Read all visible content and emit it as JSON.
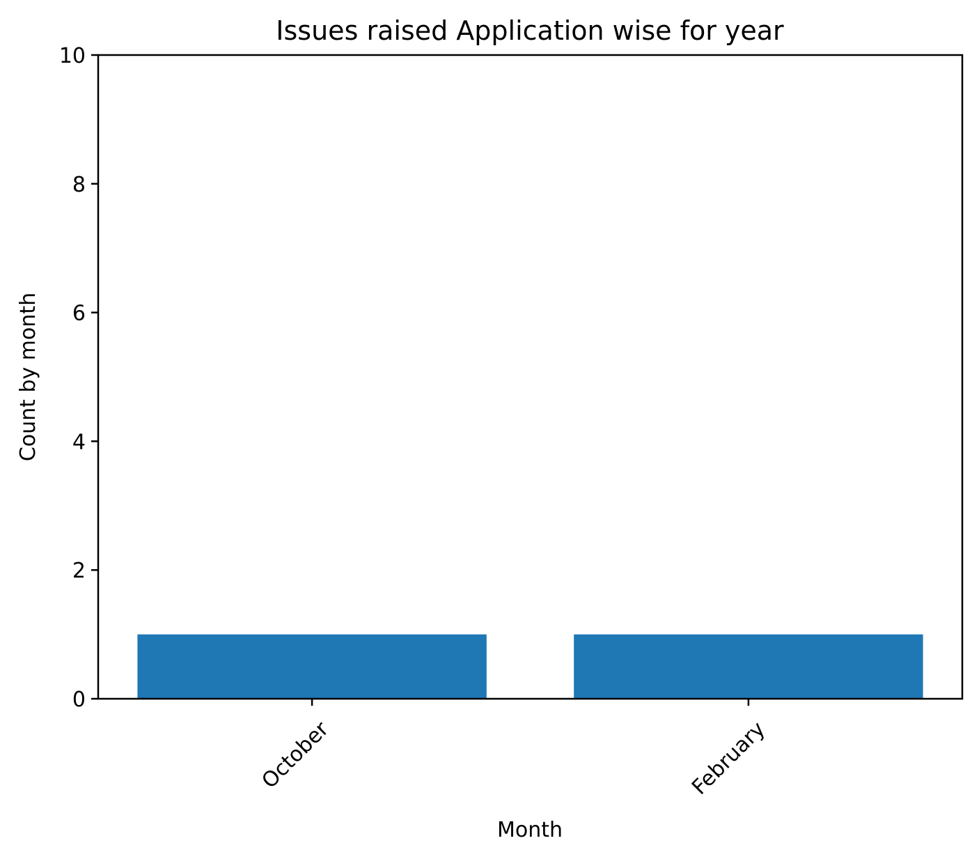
{
  "chart_data": {
    "type": "bar",
    "title": "Issues raised Application wise for  year",
    "xlabel": "Month",
    "ylabel": "Count by month",
    "categories": [
      "October",
      "February"
    ],
    "values": [
      1,
      1
    ],
    "ylim": [
      0,
      10
    ],
    "yticks": [
      0,
      2,
      4,
      6,
      8,
      10
    ],
    "xtick_rotation": 45,
    "grid": false,
    "legend": "none",
    "bar_color": "#1f77b4",
    "axis_color": "#000000",
    "background": "#ffffff"
  }
}
